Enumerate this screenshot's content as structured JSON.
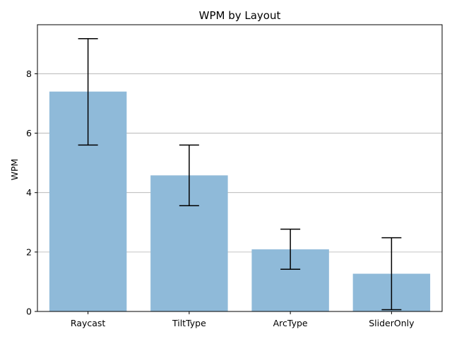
{
  "chart_data": {
    "type": "bar",
    "title": "WPM by Layout",
    "xlabel": "",
    "ylabel": "WPM",
    "categories": [
      "Raycast",
      "TiltType",
      "ArcType",
      "SliderOnly"
    ],
    "values": [
      7.4,
      4.58,
      2.09,
      1.27
    ],
    "error_low": [
      5.6,
      3.56,
      1.42,
      0.06
    ],
    "error_high": [
      9.18,
      5.6,
      2.77,
      2.48
    ],
    "ylim": [
      0,
      9.65
    ],
    "yticks": [
      0,
      2,
      4,
      6,
      8
    ],
    "grid": "y",
    "bar_color": "#8fbad9",
    "errorbar_color": "#000000"
  }
}
